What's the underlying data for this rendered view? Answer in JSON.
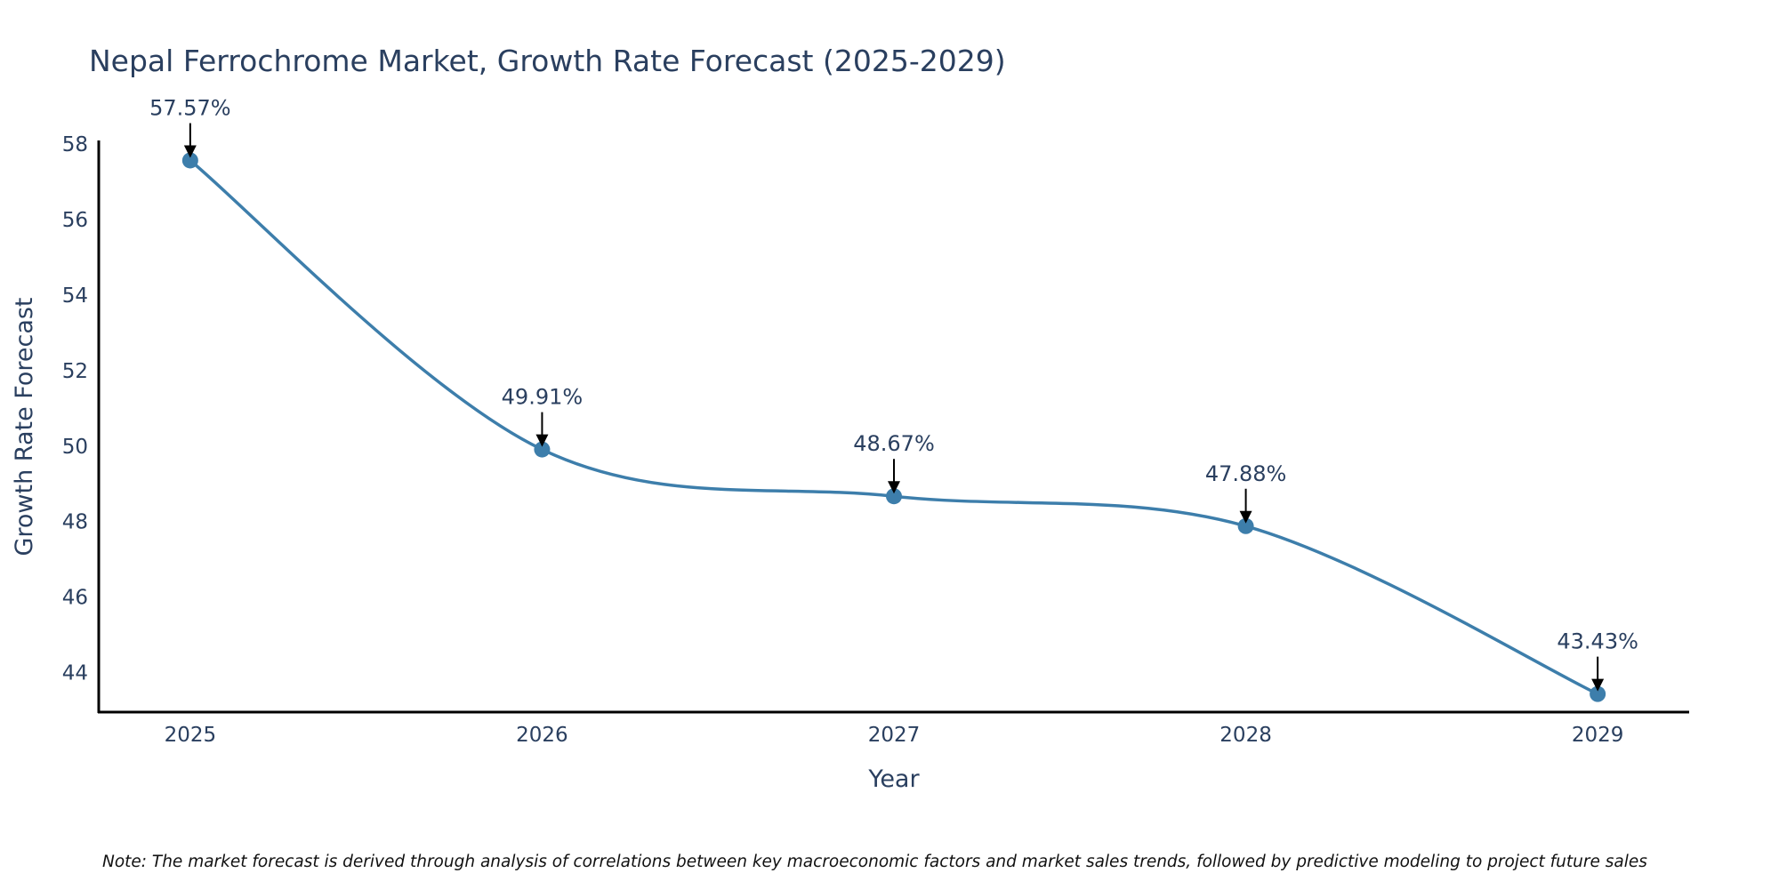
{
  "chart_data": {
    "type": "line",
    "title": "Nepal Ferrochrome Market, Growth Rate Forecast (2025-2029)",
    "xlabel": "Year",
    "ylabel": "Growth Rate Forecast",
    "categories": [
      "2025",
      "2026",
      "2027",
      "2028",
      "2029"
    ],
    "x": [
      2025,
      2026,
      2027,
      2028,
      2029
    ],
    "series": [
      {
        "name": "Growth Rate Forecast",
        "values": [
          57.57,
          49.91,
          48.67,
          47.88,
          43.43
        ],
        "labels": [
          "57.57%",
          "49.91%",
          "48.67%",
          "47.88%",
          "43.43%"
        ],
        "color": "#3d7eab",
        "line_shape": "spline",
        "markers": true
      }
    ],
    "xlim": [
      2024.74,
      2029.26
    ],
    "ylim": [
      42.95,
      58.1
    ],
    "yticks": [
      44,
      46,
      48,
      50,
      52,
      54,
      56,
      58
    ],
    "xticks": [
      "2025",
      "2026",
      "2027",
      "2028",
      "2029"
    ],
    "grid": false,
    "legend": "none",
    "annotation_arrow_color": "#000000",
    "note": "Note: The market forecast is derived through analysis of correlations between key macroeconomic factors and market sales trends, followed by predictive modeling to project future sales"
  }
}
